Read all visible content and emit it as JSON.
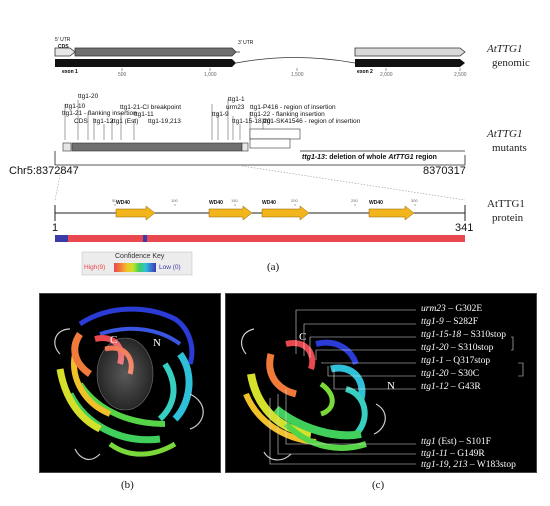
{
  "genomic": {
    "utr5": "5' UTR",
    "cds": "CDS",
    "utr3": "3' UTR",
    "exon1": "exon 1",
    "exon2": "exon 2",
    "ticks": [
      "500",
      "1,000",
      "1,500",
      "2,000",
      "2,500"
    ],
    "gene_name": "AtTTG1",
    "gene_sub": "genomic"
  },
  "mutants": {
    "labels": [
      "ttg1-20",
      "ttg1-10",
      "ttg1-21 - flanking insertion",
      "CDS",
      "ttg1-12",
      "ttg1-21-CI breakpoint",
      "ttg1 (Est)",
      "ttg1-11",
      "ttg1-19,213",
      "ttg1-1",
      "urm23",
      "ttg1-9",
      "ttg1-P416 - region of insertion",
      "ttg1-15-18,20",
      "ttg1-22 - flanking insertion",
      "ttg1-SK41546 - region of insertion"
    ],
    "gene_name": "AtTTG1",
    "gene_sub": "mutants",
    "chr_start": "Chr5:8372847",
    "chr_end": "8370317",
    "deletion_prefix": "ttg1-13",
    "deletion_text": ": deletion of whole ",
    "deletion_gene": "AtTTG1",
    "deletion_suffix": " region"
  },
  "protein": {
    "gene_name": "AtTTG1",
    "gene_sub": "protein",
    "start": "1",
    "end": "341",
    "domain_label": "WD40",
    "ticks": [
      "50",
      "100",
      "150",
      "200",
      "250",
      "300"
    ],
    "confidence_title": "Confidence Key",
    "conf_high": "High(9)",
    "conf_low": "Low (0)",
    "caption_a": "(a)"
  },
  "panel_b": {
    "label_c": "C",
    "label_n": "N",
    "caption": "(b)"
  },
  "panel_c": {
    "label_c": "C",
    "label_n": "N",
    "caption": "(c)",
    "mutations": [
      {
        "name": "urm23",
        "effect": " – G302E"
      },
      {
        "name": "ttg1-9",
        "effect": " – S282F"
      },
      {
        "name": "ttg1-15-18",
        "effect": " – S310stop"
      },
      {
        "name": "ttg1-20",
        "effect": " – S310stop"
      },
      {
        "name": "ttg1-1",
        "effect": " – Q317stop"
      },
      {
        "name": "ttg1-20",
        "effect": " – S30C"
      },
      {
        "name": "ttg1-12",
        "effect": " – G43R"
      },
      {
        "name": "ttg1",
        "plain": " (Est)",
        "effect": " – S101F"
      },
      {
        "name": "ttg1-11",
        "effect": " – G149R"
      },
      {
        "name": "ttg1-19, 213",
        "effect": " – W183stop"
      }
    ]
  },
  "colors": {
    "exon_dark": "#111111",
    "cds_gray": "#6f6f6f",
    "utr_light": "#d9d9d9",
    "wd40_yellow": "#f2b51c",
    "confidence_red": "#e8484e",
    "confidence_blue": "#3a3aa8"
  }
}
